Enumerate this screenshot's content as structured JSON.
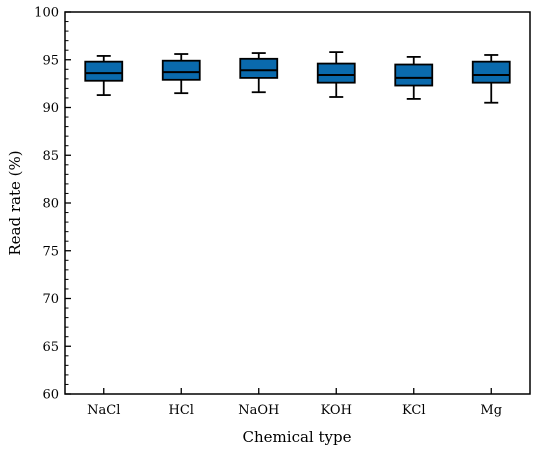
{
  "chart_data": {
    "type": "boxplot",
    "title": "",
    "xlabel": "Chemical type",
    "ylabel": "Read rate (%)",
    "ylim": [
      60,
      100
    ],
    "yticks": [
      60,
      65,
      70,
      75,
      80,
      85,
      90,
      95,
      100
    ],
    "box_color": "#0a6aad",
    "grid": false,
    "categories": [
      "NaCl",
      "HCl",
      "NaOH",
      "KOH",
      "KCl",
      "Mg"
    ],
    "boxes": [
      {
        "name": "NaCl",
        "whisker_low": 91.3,
        "q1": 92.8,
        "median": 93.6,
        "q3": 94.8,
        "whisker_high": 95.4
      },
      {
        "name": "HCl",
        "whisker_low": 91.5,
        "q1": 92.9,
        "median": 93.7,
        "q3": 94.9,
        "whisker_high": 95.6
      },
      {
        "name": "NaOH",
        "whisker_low": 91.6,
        "q1": 93.1,
        "median": 93.9,
        "q3": 95.1,
        "whisker_high": 95.7
      },
      {
        "name": "KOH",
        "whisker_low": 91.1,
        "q1": 92.6,
        "median": 93.4,
        "q3": 94.6,
        "whisker_high": 95.8
      },
      {
        "name": "KCl",
        "whisker_low": 90.9,
        "q1": 92.3,
        "median": 93.1,
        "q3": 94.5,
        "whisker_high": 95.3
      },
      {
        "name": "Mg",
        "whisker_low": 90.5,
        "q1": 92.6,
        "median": 93.4,
        "q3": 94.8,
        "whisker_high": 95.5
      }
    ]
  }
}
